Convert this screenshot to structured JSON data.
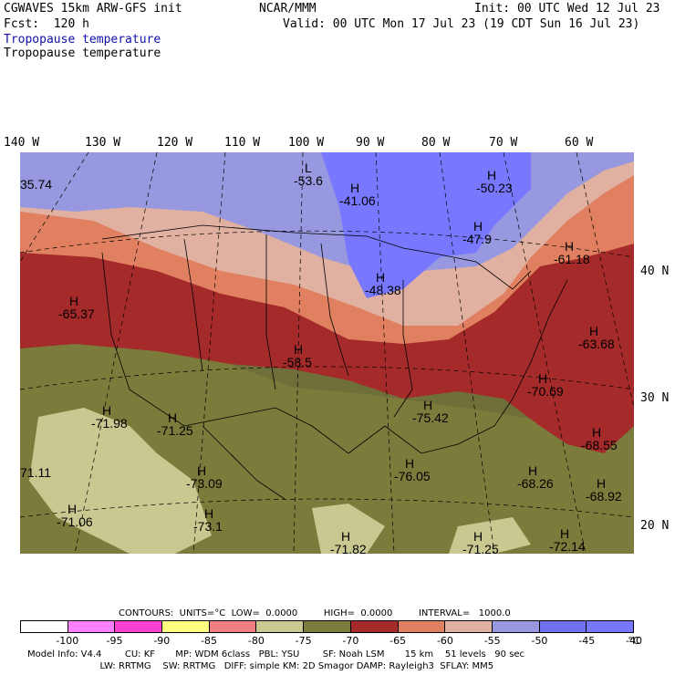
{
  "header": {
    "line1_left": "CGWAVES 15km ARW-GFS init",
    "line1_mid": "NCAR/MMM",
    "line1_right": "Init: 00 UTC Wed 12 Jul 23",
    "line2_left": "Fcst:  120 h",
    "line2_right": "Valid: 00 UTC Mon 17 Jul 23 (19 CDT Sun 16 Jul 23)",
    "field_blue": "Tropopause temperature",
    "field_black": "Tropopause temperature"
  },
  "lon_labels": [
    "140 W",
    "130 W",
    "120 W",
    "110 W",
    "100 W",
    "90 W",
    "80 W",
    "70 W",
    "60 W"
  ],
  "lat_labels": [
    "40 N",
    "30 N",
    "20 N"
  ],
  "map_labels": [
    {
      "letter": "",
      "value": "35.74"
    },
    {
      "letter": "L",
      "value": "-53.6"
    },
    {
      "letter": "H",
      "value": "-41.06"
    },
    {
      "letter": "H",
      "value": "-50.23"
    },
    {
      "letter": "H",
      "value": "-47.9"
    },
    {
      "letter": "H",
      "value": "-61.18"
    },
    {
      "letter": "H",
      "value": "-48.38"
    },
    {
      "letter": "H",
      "value": "-65.37"
    },
    {
      "letter": "H",
      "value": "-58.5"
    },
    {
      "letter": "H",
      "value": "-63.68"
    },
    {
      "letter": "H",
      "value": "-70.69"
    },
    {
      "letter": "H",
      "value": "-71.98"
    },
    {
      "letter": "H",
      "value": "-71.25"
    },
    {
      "letter": "H",
      "value": "-75.42"
    },
    {
      "letter": "H",
      "value": "-68.55"
    },
    {
      "letter": "",
      "value": "71.11"
    },
    {
      "letter": "H",
      "value": "-73.09"
    },
    {
      "letter": "H",
      "value": "-76.05"
    },
    {
      "letter": "H",
      "value": "-68.26"
    },
    {
      "letter": "H",
      "value": "-68.92"
    },
    {
      "letter": "H",
      "value": "-71.06"
    },
    {
      "letter": "H",
      "value": "-73.1"
    },
    {
      "letter": "H",
      "value": "-71.82"
    },
    {
      "letter": "H",
      "value": "-71.25"
    },
    {
      "letter": "H",
      "value": "-72.14"
    }
  ],
  "contours": {
    "text": "CONTOURS:  UNITS=°C  LOW=  0.0000         HIGH=  0.0000         INTERVAL=   1000.0"
  },
  "colorbar": {
    "colors": [
      "#ffffff",
      "#ff80ff",
      "#ff40d0",
      "#ffff80",
      "#f08080",
      "#c8c890",
      "#7b7b3c",
      "#a52a2a",
      "#e08060",
      "#e0b0a0",
      "#9898e0",
      "#7070f0",
      "#7878ff"
    ],
    "ticks": [
      "-100",
      "-95",
      "-90",
      "-85",
      "-80",
      "-75",
      "-70",
      "-65",
      "-60",
      "-55",
      "-50",
      "-45",
      "-40"
    ],
    "unit": "°C"
  },
  "footer": {
    "line1": "Model Info: V4.4        CU: KF       MP: WDM 6class   PBL: YSU        SF: Noah LSM       15 km    51 levels   90 sec",
    "line2": "                         LW: RRTMG    SW: RRTMG   DIFF: simple KM: 2D Smagor DAMP: Rayleigh3  SFLAY: MM5"
  }
}
